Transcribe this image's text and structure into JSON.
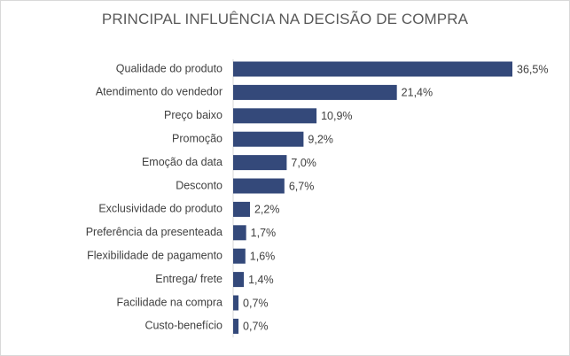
{
  "chart_data": {
    "type": "bar",
    "orientation": "horizontal",
    "title": "PRINCIPAL INFLUÊNCIA NA DECISÃO DE COMPRA",
    "categories": [
      "Qualidade do produto",
      "Atendimento do vendedor",
      "Preço baixo",
      "Promoção",
      "Emoção da data",
      "Desconto",
      "Exclusividade do produto",
      "Preferência da presenteada",
      "Flexibilidade de pagamento",
      "Entrega/ frete",
      "Facilidade na compra",
      "Custo-benefício"
    ],
    "values": [
      36.5,
      21.4,
      10.9,
      9.2,
      7.0,
      6.7,
      2.2,
      1.7,
      1.6,
      1.4,
      0.7,
      0.7
    ],
    "value_labels": [
      "36,5%",
      "21,4%",
      "10,9%",
      "9,2%",
      "7,0%",
      "6,7%",
      "2,2%",
      "1,7%",
      "1,6%",
      "1,4%",
      "0,7%",
      "0,7%"
    ],
    "xlim": [
      0,
      36.5
    ],
    "grid": false,
    "legend": "none",
    "bar_color": "#34497a"
  }
}
